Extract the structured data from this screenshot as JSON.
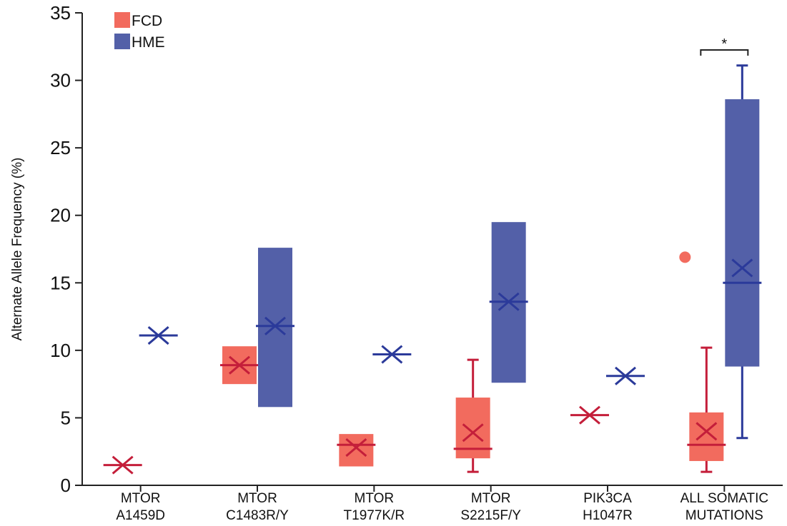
{
  "chart_data": {
    "type": "box",
    "ylabel": "Alternate Allele Frequency (%)",
    "ylim": [
      0,
      35
    ],
    "yticks": [
      0,
      5,
      10,
      15,
      20,
      25,
      30,
      35
    ],
    "grid": false,
    "legend_position": "top-left",
    "categories": [
      [
        "MTOR",
        "A1459D"
      ],
      [
        "MTOR",
        "C1483R/Y"
      ],
      [
        "MTOR",
        "T1977K/R"
      ],
      [
        "MTOR",
        "S2215F/Y"
      ],
      [
        "PIK3CA",
        "H1047R"
      ],
      [
        "ALL SOMATIC",
        "MUTATIONS"
      ]
    ],
    "series": [
      {
        "name": "FCD",
        "color": "#f26b5e",
        "line_color": "#c41e3a",
        "groups": [
          {
            "category_index": 0,
            "mean": 1.5,
            "median": 1.5
          },
          {
            "category_index": 1,
            "mean": 8.9,
            "median": 8.9,
            "q1": 7.5,
            "q3": 10.3
          },
          {
            "category_index": 2,
            "mean": 2.8,
            "median": 3.0,
            "q1": 1.4,
            "q3": 3.8
          },
          {
            "category_index": 3,
            "mean": 3.9,
            "median": 2.7,
            "q1": 2.0,
            "q3": 6.5,
            "whisker_low": 1.0,
            "whisker_high": 9.3
          },
          {
            "category_index": 4,
            "mean": 5.2,
            "median": 5.2
          },
          {
            "category_index": 5,
            "mean": 4.0,
            "median": 3.0,
            "q1": 1.8,
            "q3": 5.4,
            "whisker_low": 1.0,
            "whisker_high": 10.2,
            "outliers": [
              16.9
            ]
          }
        ]
      },
      {
        "name": "HME",
        "color": "#5360a8",
        "line_color": "#2b3a9a",
        "groups": [
          {
            "category_index": 0,
            "mean": 11.1,
            "median": 11.1
          },
          {
            "category_index": 1,
            "mean": 11.8,
            "median": 11.8,
            "q1": 5.8,
            "q3": 17.6
          },
          {
            "category_index": 2,
            "mean": 9.7,
            "median": 9.7
          },
          {
            "category_index": 3,
            "mean": 13.6,
            "median": 13.6,
            "q1": 7.6,
            "q3": 19.5
          },
          {
            "category_index": 4,
            "mean": 8.1,
            "median": 8.1
          },
          {
            "category_index": 5,
            "mean": 16.1,
            "median": 15.0,
            "q1": 8.8,
            "q3": 28.6,
            "whisker_low": 3.5,
            "whisker_high": 31.1
          }
        ]
      }
    ],
    "annotations": [
      {
        "text": "*",
        "between_series": [
          "FCD",
          "HME"
        ],
        "category_index": 5
      }
    ]
  }
}
